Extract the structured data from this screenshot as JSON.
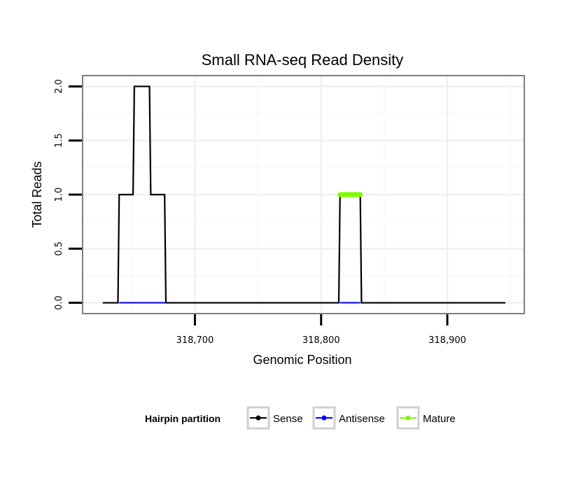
{
  "chart_data": {
    "type": "line",
    "title": "Small RNA-seq Read Density",
    "xlabel": "Genomic Position",
    "ylabel": "Total Reads",
    "xlim": [
      318611,
      318961
    ],
    "ylim": [
      -0.1,
      2.1
    ],
    "x_ticks": [
      318700,
      318800,
      318900
    ],
    "x_tick_labels": [
      "318,700",
      "318,800",
      "318,900"
    ],
    "y_ticks": [
      0,
      0.5,
      1,
      1.5,
      2
    ],
    "y_tick_labels": [
      "0.0",
      "0.5",
      "1.0",
      "1.5",
      "2.0"
    ],
    "legend": {
      "title": "Hairpin partition",
      "position": "bottom",
      "entries": [
        {
          "name": "Sense",
          "color": "#000000"
        },
        {
          "name": "Antisense",
          "color": "#0000ff"
        },
        {
          "name": "Mature",
          "color": "#7cfc00"
        }
      ]
    },
    "series": [
      {
        "name": "Sense",
        "color": "#000000",
        "x": [
          318627,
          318639,
          318640,
          318651,
          318652,
          318664,
          318665,
          318676,
          318677,
          318814,
          318815,
          318831,
          318832,
          318946
        ],
        "y": [
          0,
          0,
          1,
          1,
          2,
          2,
          1,
          1,
          0,
          0,
          1,
          1,
          0,
          0
        ]
      },
      {
        "name": "Antisense",
        "color": "#0000ff",
        "x": [
          318640,
          318677,
          318815,
          318831
        ],
        "y": [
          0,
          0,
          0,
          0
        ],
        "segments": [
          [
            0,
            1
          ],
          [
            2,
            3
          ]
        ]
      },
      {
        "name": "Mature",
        "color": "#7cfc00",
        "x": [
          318815,
          318831
        ],
        "y": [
          1,
          1
        ]
      }
    ]
  }
}
